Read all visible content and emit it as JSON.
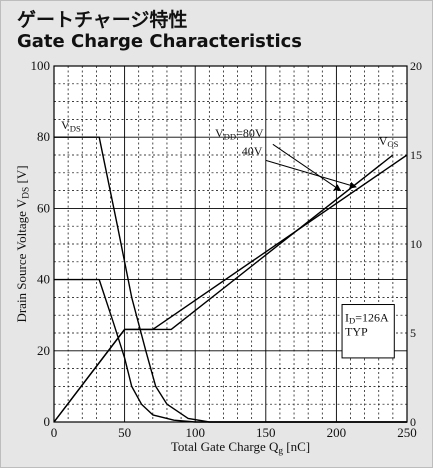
{
  "title_jp": "ゲートチャージ特性",
  "title_en": "Gate Charge Characteristics",
  "chart_data": {
    "type": "line",
    "title": "Gate Charge Characteristics",
    "xlabel": "Total Gate Charge   Qg  [nC]",
    "ylabel": "Drain Source Voltage   VDS  [V]",
    "y2label": "Gate Source Voltage   VGS  [V]",
    "xlim": [
      0,
      250
    ],
    "ylim": [
      0,
      100
    ],
    "y2lim": [
      0,
      20
    ],
    "x_ticks": [
      "0",
      "50",
      "100",
      "150",
      "200",
      "250"
    ],
    "y_ticks": [
      "0",
      "20",
      "40",
      "60",
      "80",
      "100"
    ],
    "y2_ticks": [
      "0",
      "5",
      "10",
      "15",
      "20"
    ],
    "grid": true,
    "series": [
      {
        "name": "VDS",
        "group": "VDS",
        "label": "VDD=80V",
        "axis": "left",
        "x": [
          0,
          32,
          45,
          55,
          65,
          72,
          80,
          95,
          110,
          250
        ],
        "y": [
          80,
          80,
          55,
          35,
          20,
          10,
          5,
          1,
          0,
          0
        ]
      },
      {
        "name": "VDS",
        "group": "VDS",
        "label": "40V",
        "axis": "left",
        "x": [
          0,
          32,
          42,
          50,
          55,
          62,
          70,
          85,
          100,
          250
        ],
        "y": [
          40,
          40,
          28,
          18,
          10,
          5,
          2,
          0.5,
          0,
          0
        ]
      },
      {
        "name": "VGS",
        "group": "VGS",
        "label": "VDD=80V",
        "axis": "right",
        "x": [
          0,
          50,
          83,
          240
        ],
        "y": [
          0,
          5.2,
          5.2,
          15
        ]
      },
      {
        "name": "VGS",
        "group": "VGS",
        "label": "40V",
        "axis": "right",
        "x": [
          0,
          50,
          70,
          250
        ],
        "y": [
          0,
          5.2,
          5.2,
          15
        ]
      }
    ],
    "annotations": {
      "vds_label_main": "V",
      "vds_label_sub": "DS",
      "vgs_label_main": "V",
      "vgs_label_sub": "GS",
      "vdd80_main": "V",
      "vdd80_sub": "DD",
      "vdd80_rest": "=80V",
      "vdd40": "40V",
      "box_line1_main": "I",
      "box_line1_sub": "D",
      "box_line1_rest": "=126A",
      "box_line2": "TYP",
      "arrow_target_80": [
        203,
        65
      ],
      "arrow_target_40": [
        214,
        66
      ]
    },
    "ylabel_parts": {
      "main": "Drain Source Voltage   V",
      "sub": "DS",
      "rest": "  [V]"
    },
    "xlabel_parts": {
      "main": "Total Gate Charge   Q",
      "sub": "g",
      "rest": "  [nC]"
    }
  }
}
